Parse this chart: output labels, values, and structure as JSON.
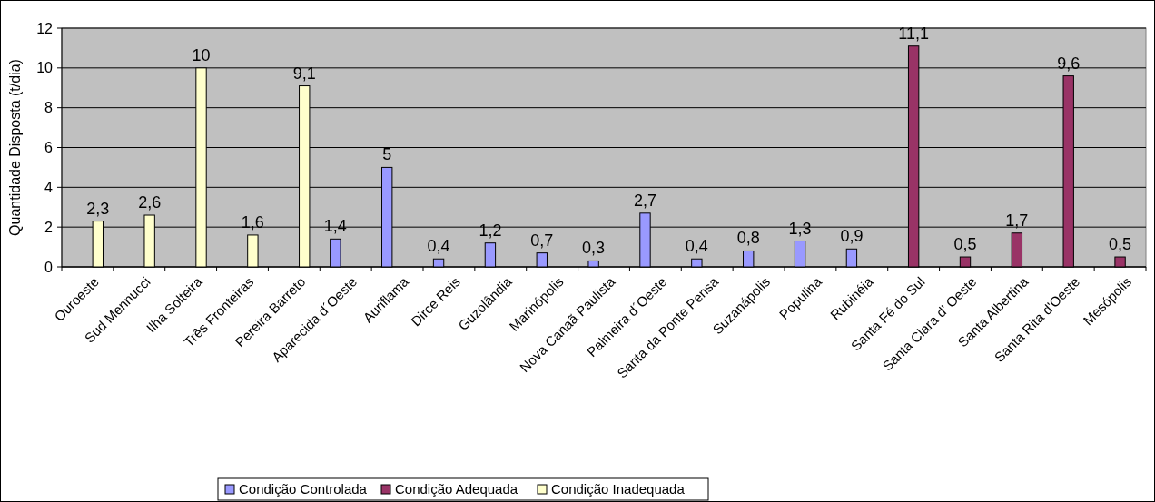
{
  "chart_data": {
    "type": "bar",
    "ylabel": "Quantidade Disposta (t/dia)",
    "categories": [
      "Ouroeste",
      "Sud Mennucci",
      "Ilha Solteira",
      "Três Fronteiras",
      "Pereira Barreto",
      "Aparecida d´Oeste",
      "Auriflama",
      "Dirce Reis",
      "Guzolândia",
      "Marinópolis",
      "Nova Canaã Paulista",
      "Palmeira d´Oeste",
      "Santa da Ponte Pensa",
      "Suzanápolis",
      "Populina",
      "Rubinéia",
      "Santa Fé do Sul",
      "Santa Clara d' Oeste",
      "Santa Albertina",
      "Santa Rita d'Oeste",
      "Mesópolis"
    ],
    "series": [
      {
        "name": "Condição Controlada",
        "color": "#9999ff",
        "values": [
          null,
          null,
          null,
          null,
          null,
          1.4,
          5,
          0.4,
          1.2,
          0.7,
          0.3,
          2.7,
          0.4,
          0.8,
          1.3,
          0.9,
          null,
          null,
          null,
          null,
          null
        ],
        "value_labels": [
          null,
          null,
          null,
          null,
          null,
          "1,4",
          "5",
          "0,4",
          "1,2",
          "0,7",
          "0,3",
          "2,7",
          "0,4",
          "0,8",
          "1,3",
          "0,9",
          null,
          null,
          null,
          null,
          null
        ]
      },
      {
        "name": "Condição Adequada",
        "color": "#993366",
        "values": [
          null,
          null,
          null,
          null,
          null,
          null,
          null,
          null,
          null,
          null,
          null,
          null,
          null,
          null,
          null,
          null,
          11.1,
          0.5,
          1.7,
          9.6,
          0.5
        ],
        "value_labels": [
          null,
          null,
          null,
          null,
          null,
          null,
          null,
          null,
          null,
          null,
          null,
          null,
          null,
          null,
          null,
          null,
          "11,1",
          "0,5",
          "1,7",
          "9,6",
          "0,5"
        ]
      },
      {
        "name": "Condição Inadequada",
        "color": "#ffffcc",
        "values": [
          2.3,
          2.6,
          10,
          1.6,
          9.1,
          null,
          null,
          null,
          null,
          null,
          null,
          null,
          null,
          null,
          null,
          null,
          null,
          null,
          null,
          null,
          null
        ],
        "value_labels": [
          "2,3",
          "2,6",
          "10",
          "1,6",
          "9,1",
          null,
          null,
          null,
          null,
          null,
          null,
          null,
          null,
          null,
          null,
          null,
          null,
          null,
          null,
          null,
          null
        ]
      }
    ],
    "ylim": [
      0,
      12
    ],
    "yticks": [
      0,
      2,
      4,
      6,
      8,
      10,
      12
    ],
    "grid": "y",
    "legend": "bottom"
  }
}
